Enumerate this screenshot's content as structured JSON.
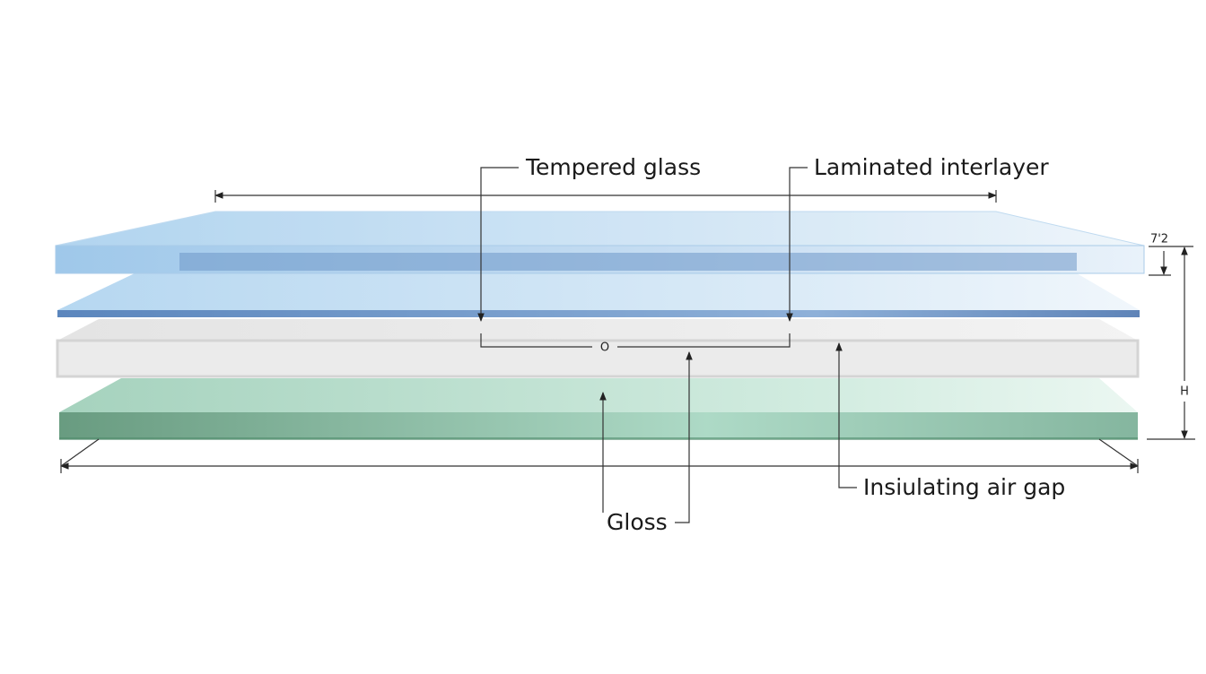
{
  "labels": {
    "tempered_glass": "Tempered glass",
    "laminated_interlayer": "Laminated interlayer",
    "air_gap": "Insiulating air gap",
    "gloss": "Gloss",
    "center_mark": "O"
  },
  "dimensions": {
    "top_thickness": "7'2",
    "height": "H"
  }
}
